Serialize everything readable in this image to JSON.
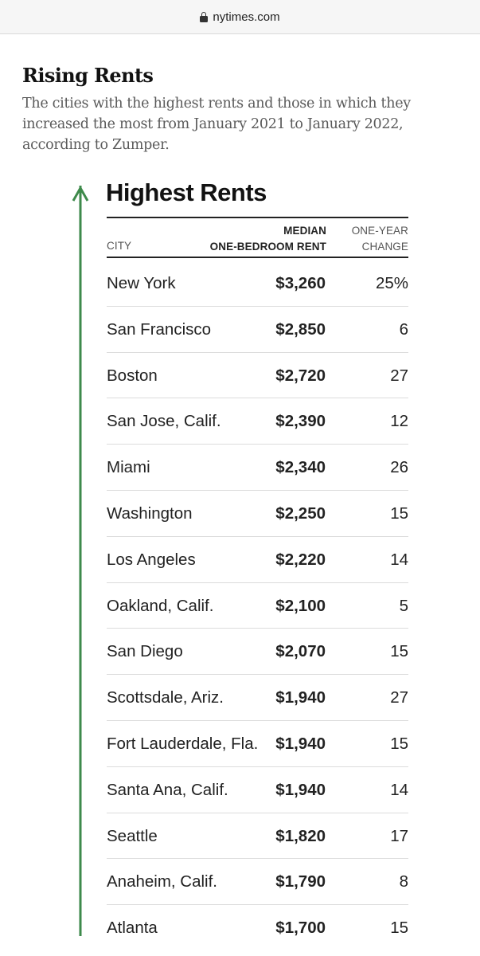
{
  "browser": {
    "url": "nytimes.com"
  },
  "article": {
    "headline": "Rising Rents",
    "dek": "The cities with the highest rents and those in which they increased the most from January 2021 to January 2022, according to Zumper.",
    "arrow_color": "#3e8a4b"
  },
  "table": {
    "title": "Highest Rents",
    "columns": {
      "city": "CITY",
      "rent": [
        "MEDIAN",
        "ONE-BEDROOM RENT"
      ],
      "change": [
        "ONE-YEAR",
        "CHANGE"
      ]
    },
    "rows": [
      {
        "city": "New York",
        "rent": "$3,260",
        "change": "25%"
      },
      {
        "city": "San Francisco",
        "rent": "$2,850",
        "change": "6"
      },
      {
        "city": "Boston",
        "rent": "$2,720",
        "change": "27"
      },
      {
        "city": "San Jose, Calif.",
        "rent": "$2,390",
        "change": "12"
      },
      {
        "city": "Miami",
        "rent": "$2,340",
        "change": "26"
      },
      {
        "city": "Washington",
        "rent": "$2,250",
        "change": "15"
      },
      {
        "city": "Los Angeles",
        "rent": "$2,220",
        "change": "14"
      },
      {
        "city": "Oakland, Calif.",
        "rent": "$2,100",
        "change": "5"
      },
      {
        "city": "San Diego",
        "rent": "$2,070",
        "change": "15"
      },
      {
        "city": "Scottsdale, Ariz.",
        "rent": "$1,940",
        "change": "27"
      },
      {
        "city": "Fort Lauderdale, Fla.",
        "rent": "$1,940",
        "change": "15"
      },
      {
        "city": "Santa Ana, Calif.",
        "rent": "$1,940",
        "change": "14"
      },
      {
        "city": "Seattle",
        "rent": "$1,820",
        "change": "17"
      },
      {
        "city": "Anaheim, Calif.",
        "rent": "$1,790",
        "change": "8"
      },
      {
        "city": "Atlanta",
        "rent": "$1,700",
        "change": "15"
      }
    ]
  }
}
